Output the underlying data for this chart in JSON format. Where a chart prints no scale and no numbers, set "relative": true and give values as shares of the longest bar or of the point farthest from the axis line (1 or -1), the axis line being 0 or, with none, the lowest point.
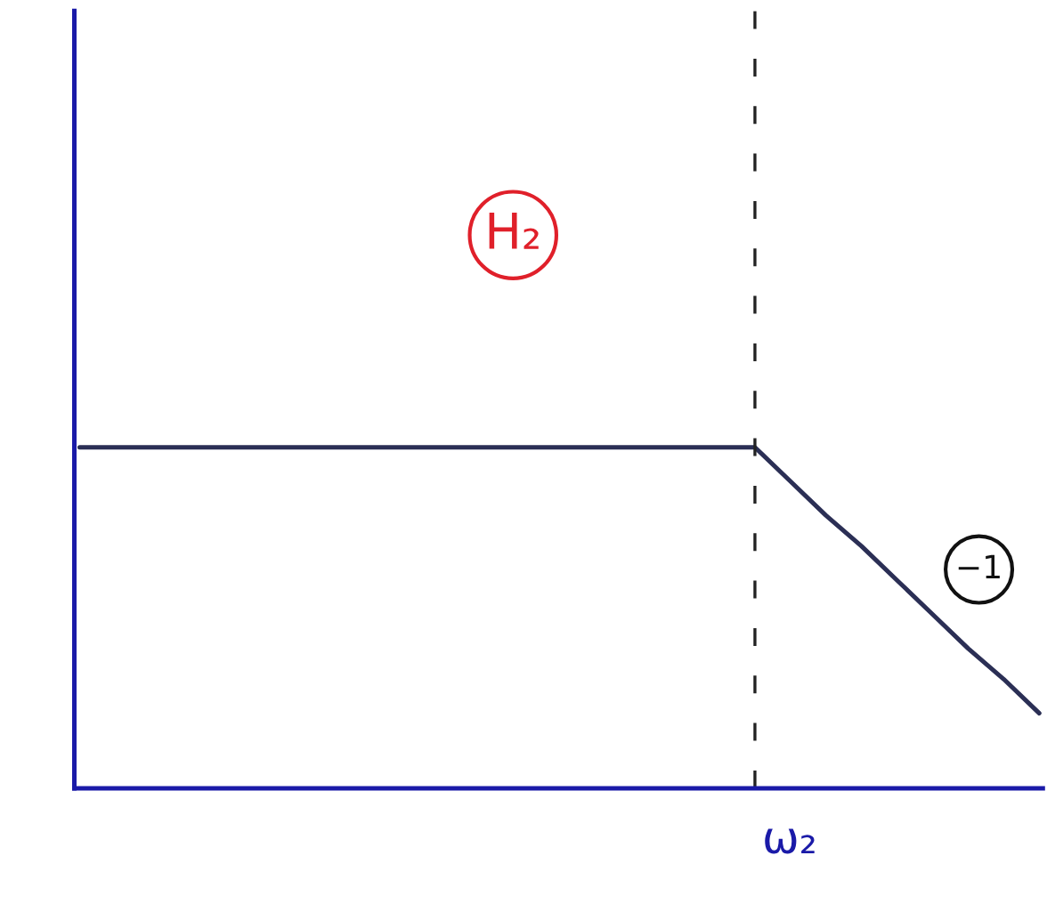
{
  "chart_data": {
    "type": "line",
    "relative": true,
    "categories": [
      null,
      null,
      null,
      null,
      null,
      null,
      null,
      null,
      null,
      null,
      null,
      null,
      null,
      null,
      null,
      null,
      null,
      null,
      null,
      null,
      null,
      null,
      null,
      null,
      null,
      null,
      null,
      null
    ],
    "series": [
      {
        "color": "#2b2f55",
        "values": [
          1,
          1,
          1,
          1,
          1,
          1,
          1,
          1,
          1,
          1,
          1,
          1,
          1,
          1,
          1,
          1,
          1,
          1,
          1,
          1,
          0.9,
          0.8,
          0.71,
          0.61,
          0.51,
          0.41,
          0.32,
          0.22
        ]
      }
    ],
    "annotations": [
      "H₂",
      "−1",
      "ω₂"
    ],
    "grid": false,
    "legend": false,
    "line_style": "solid",
    "marker": "none"
  }
}
